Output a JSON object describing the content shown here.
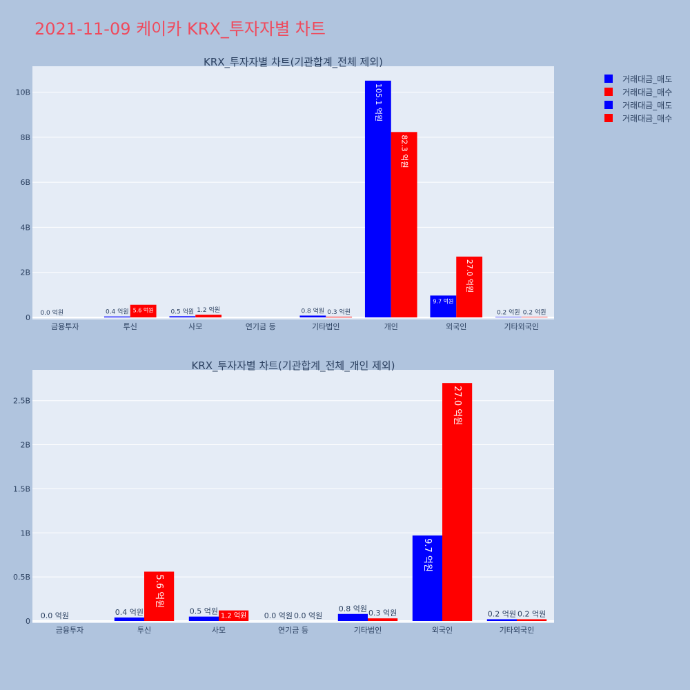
{
  "title": "2021-11-09 케이카 KRX_투자자별 차트",
  "colors": {
    "sell": "#0000ff",
    "buy": "#ff0000",
    "background": "#b0c4de",
    "plot_bg": "#e5ecf6",
    "title": "#ef4a5c"
  },
  "legend": [
    {
      "name": "거래대금_매도",
      "color": "#0000ff"
    },
    {
      "name": "거래대금_매수",
      "color": "#ff0000"
    },
    {
      "name": "거래대금_매도",
      "color": "#0000ff"
    },
    {
      "name": "거래대금_매수",
      "color": "#ff0000"
    }
  ],
  "chart_data": [
    {
      "type": "bar",
      "title": "KRX_투자자별 차트(기관합계_전체 제외)",
      "categories": [
        "금융투자",
        "투신",
        "사모",
        "연기금 등",
        "기타법인",
        "개인",
        "외국인",
        "기타외국인"
      ],
      "series": [
        {
          "name": "거래대금_매도",
          "color": "#0000ff",
          "values": [
            0,
            40000000,
            50000000,
            null,
            80000000,
            10510000000,
            970000000,
            20000000
          ],
          "labels": [
            "0.0 억원",
            "0.4 억원",
            "0.5 억원",
            "",
            "0.8 억원",
            "105.1 억원",
            "9.7 억원",
            "0.2 억원"
          ]
        },
        {
          "name": "거래대금_매수",
          "color": "#ff0000",
          "values": [
            null,
            560000000,
            120000000,
            null,
            30000000,
            8230000000,
            2700000000,
            20000000
          ],
          "labels": [
            "",
            "5.6 억원",
            "1.2 억원",
            "",
            "0.3 억원",
            "82.3 억원",
            "27.0 억원",
            "0.2 억원"
          ]
        }
      ],
      "yticks": [
        "0",
        "2B",
        "4B",
        "6B",
        "8B",
        "10B"
      ],
      "ytick_values": [
        0,
        2000000000,
        4000000000,
        6000000000,
        8000000000,
        10000000000
      ],
      "ylim": [
        0,
        11150000000
      ]
    },
    {
      "type": "bar",
      "title": "KRX_투자자별 차트(기관합계_전체_개인 제외)",
      "categories": [
        "금융투자",
        "투신",
        "사모",
        "연기금 등",
        "기타법인",
        "외국인",
        "기타외국인"
      ],
      "series": [
        {
          "name": "거래대금_매도",
          "color": "#0000ff",
          "values": [
            0,
            40000000,
            50000000,
            0,
            80000000,
            970000000,
            20000000
          ],
          "labels": [
            "0.0 억원",
            "0.4 억원",
            "0.5 억원",
            "0.0 억원",
            "0.8 억원",
            "9.7 억원",
            "0.2 억원"
          ]
        },
        {
          "name": "거래대금_매수",
          "color": "#ff0000",
          "values": [
            null,
            560000000,
            120000000,
            0,
            30000000,
            2700000000,
            20000000
          ],
          "labels": [
            "",
            "5.6 억원",
            "1.2 억원",
            "0.0 억원",
            "0.3 억원",
            "27.0 억원",
            "0.2 억원"
          ]
        }
      ],
      "yticks": [
        "0",
        "0.5B",
        "1B",
        "1.5B",
        "2B",
        "2.5B"
      ],
      "ytick_values": [
        0,
        500000000,
        1000000000,
        1500000000,
        2000000000,
        2500000000
      ],
      "ylim": [
        0,
        2850000000
      ]
    }
  ]
}
